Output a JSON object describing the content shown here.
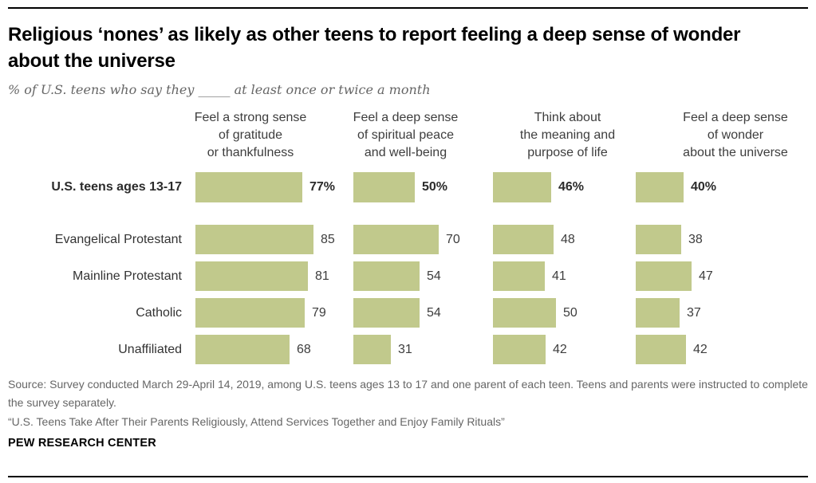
{
  "chart_data": {
    "type": "bar",
    "orientation": "horizontal",
    "title": "Religious ‘nones’ as likely as other teens to report feeling a deep sense of wonder about the universe",
    "subtitle": "% of U.S. teens who say they _____ at least once or twice a month",
    "categories": [
      "U.S. teens ages 13-17",
      "Evangelical Protestant",
      "Mainline Protestant",
      "Catholic",
      "Unaffiliated"
    ],
    "series": [
      {
        "name": "Feel a strong sense of gratitude or thankfulness",
        "values": [
          77,
          85,
          81,
          79,
          68
        ]
      },
      {
        "name": "Feel a deep sense of spiritual peace and well-being",
        "values": [
          50,
          70,
          54,
          54,
          31
        ]
      },
      {
        "name": "Think about the meaning and purpose of life",
        "values": [
          46,
          48,
          41,
          50,
          42
        ]
      },
      {
        "name": "Feel a deep sense of wonder about the universe",
        "values": [
          40,
          38,
          47,
          37,
          42
        ]
      }
    ],
    "value_labels_shown": true,
    "first_row_value_suffix": "%",
    "xlim": [
      0,
      100
    ],
    "grid": false,
    "legend_position": "none",
    "bar_color": "#C1C98C"
  },
  "header": {
    "title": "Religious ‘nones’ as likely as other teens to report feeling a deep sense of wonder\nabout the universe",
    "subtitle": "% of U.S. teens who say they _____ at least once or twice a month"
  },
  "columns": [
    {
      "heading": "Feel a strong sense\nof gratitude\nor thankfulness",
      "scale": 1.74
    },
    {
      "heading": "Feel a deep sense\nof spiritual peace\nand well-being",
      "scale": 1.53
    },
    {
      "heading": "Think about\nthe meaning and\npurpose of life",
      "scale": 1.58
    },
    {
      "heading": "Feel a deep sense\nof wonder\nabout the universe",
      "scale": 1.49
    }
  ],
  "rows": [
    {
      "label": "U.S. teens ages 13-17",
      "emphasis": true,
      "values": [
        77,
        50,
        46,
        40
      ],
      "display": [
        "77%",
        "50%",
        "46%",
        "40%"
      ]
    },
    {
      "label": "Evangelical Protestant",
      "emphasis": false,
      "values": [
        85,
        70,
        48,
        38
      ],
      "display": [
        "85",
        "70",
        "48",
        "38"
      ]
    },
    {
      "label": "Mainline Protestant",
      "emphasis": false,
      "values": [
        81,
        54,
        41,
        47
      ],
      "display": [
        "81",
        "54",
        "41",
        "47"
      ]
    },
    {
      "label": "Catholic",
      "emphasis": false,
      "values": [
        79,
        54,
        50,
        37
      ],
      "display": [
        "79",
        "54",
        "50",
        "37"
      ]
    },
    {
      "label": "Unaffiliated",
      "emphasis": false,
      "values": [
        68,
        31,
        42,
        42
      ],
      "display": [
        "68",
        "31",
        "42",
        "42"
      ]
    }
  ],
  "footer": {
    "source": "Source: Survey conducted March 29-April 14, 2019, among U.S. teens ages 13 to 17 and one parent of each teen. Teens and parents were instructed to complete the survey separately.",
    "report": "“U.S. Teens Take After Their Parents Religiously, Attend Services Together and Enjoy Family Rituals”",
    "brand": "PEW RESEARCH CENTER"
  },
  "colors": {
    "bar": "#C1C98C",
    "title": "#000000",
    "subtitle": "#666666",
    "heading": "#3d3d3d",
    "label": "#333333",
    "source": "#666666",
    "rule": "#000000"
  }
}
